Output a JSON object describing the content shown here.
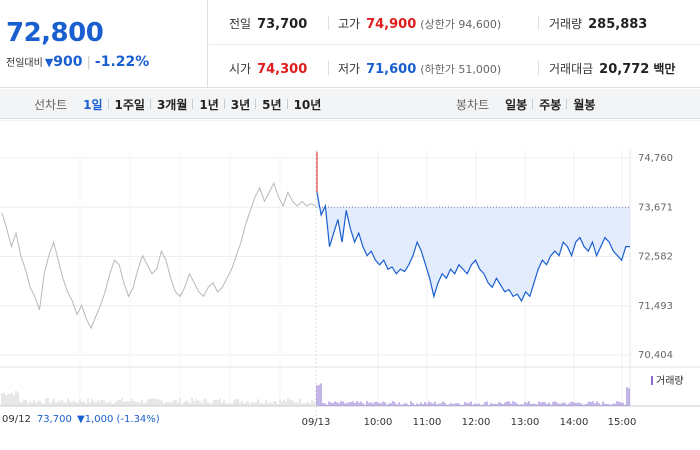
{
  "summary": {
    "price": "72,800",
    "change_label": "전일대비",
    "change_arrow": "▼",
    "change_amount": "900",
    "change_pct": "-1.22%",
    "prev_close_label": "전일",
    "prev_close": "73,700",
    "high_label": "고가",
    "high": "74,900",
    "upper_limit": "(상한가 94,600)",
    "volume_label": "거래량",
    "volume": "285,883",
    "open_label": "시가",
    "open": "74,300",
    "low_label": "저가",
    "low": "71,600",
    "lower_limit": "(하한가 51,000)",
    "value_label": "거래대금",
    "value": "20,772",
    "value_unit": "백만"
  },
  "toolbar": {
    "line_label": "선차트",
    "line_options": [
      "1일",
      "1주일",
      "3개월",
      "1년",
      "3년",
      "5년",
      "10년"
    ],
    "line_active": "1일",
    "candle_label": "봉차트",
    "candle_options": [
      "일봉",
      "주봉",
      "월봉"
    ]
  },
  "colors": {
    "up": "#e01d1d",
    "down": "#1a5fcf",
    "prev_day_line": "#b8b8b8",
    "fill": "#dde9fb",
    "volume": "#8a6fd0"
  },
  "prev_day": {
    "date": "09/12",
    "close": "73,700",
    "change": "▼1,000 (-1.34%)"
  },
  "chart_data": {
    "type": "line",
    "yticks": [
      "74,760",
      "73,671",
      "72,582",
      "71,493",
      "70,404"
    ],
    "ylim": [
      70404,
      74760
    ],
    "reference": 73671,
    "xtick_labels": [
      "09/12",
      "09/13",
      "10:00",
      "11:00",
      "12:00",
      "13:00",
      "14:00",
      "15:00"
    ],
    "volume_legend": "거래량",
    "series": [
      {
        "values": [
          73550,
          73200,
          72800,
          73100,
          72600,
          72300,
          71900,
          71700,
          71400,
          72200,
          72600,
          72900,
          72500,
          72100,
          71800,
          71600,
          71300,
          71500,
          71200,
          71000,
          71250,
          71500,
          71800,
          72200,
          72500,
          72400,
          72000,
          71700,
          71900,
          72300,
          72600,
          72400,
          72200,
          72300,
          72700,
          72500,
          72100,
          71800,
          71700,
          71900,
          72200,
          72000,
          71800,
          71700,
          71900,
          72000,
          71800,
          71900,
          72100,
          72300,
          72600,
          72900,
          73300,
          73600,
          73900,
          74100,
          73800,
          74000,
          74200,
          73900,
          73700,
          74000,
          73800,
          73700,
          73800,
          73700,
          73750,
          73700
        ]
      },
      {
        "values": [
          74000,
          73500,
          73700,
          72800,
          73100,
          73400,
          72900,
          73600,
          73200,
          72900,
          73100,
          72800,
          72600,
          72700,
          72500,
          72400,
          72500,
          72300,
          72350,
          72200,
          72300,
          72250,
          72400,
          72600,
          72900,
          72700,
          72400,
          72100,
          71700,
          72000,
          72200,
          72100,
          72300,
          72200,
          72400,
          72300,
          72200,
          72400,
          72500,
          72300,
          72200,
          72000,
          71900,
          72100,
          71950,
          71800,
          71850,
          71700,
          71750,
          71600,
          71800,
          71700,
          72000,
          72300,
          72500,
          72400,
          72600,
          72700,
          72600,
          72900,
          72800,
          72600,
          72900,
          73000,
          72800,
          72700,
          72900,
          72600,
          72800,
          73000,
          72900,
          72700,
          72600,
          72500,
          72800,
          72800
        ]
      }
    ]
  }
}
